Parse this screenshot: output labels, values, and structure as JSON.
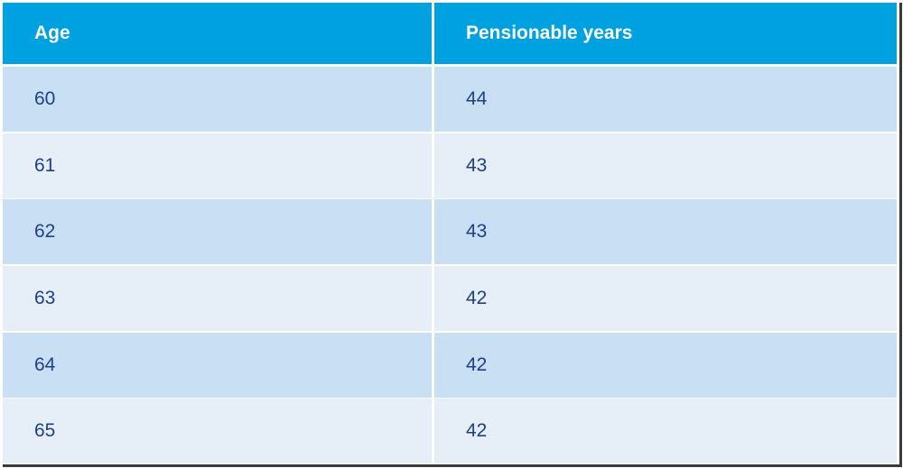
{
  "table": {
    "header": [
      "Age",
      "Pensionable years"
    ],
    "rows": [
      [
        60,
        44
      ],
      [
        61,
        43
      ],
      [
        62,
        43
      ],
      [
        63,
        42
      ],
      [
        64,
        42
      ],
      [
        65,
        42
      ]
    ]
  }
}
